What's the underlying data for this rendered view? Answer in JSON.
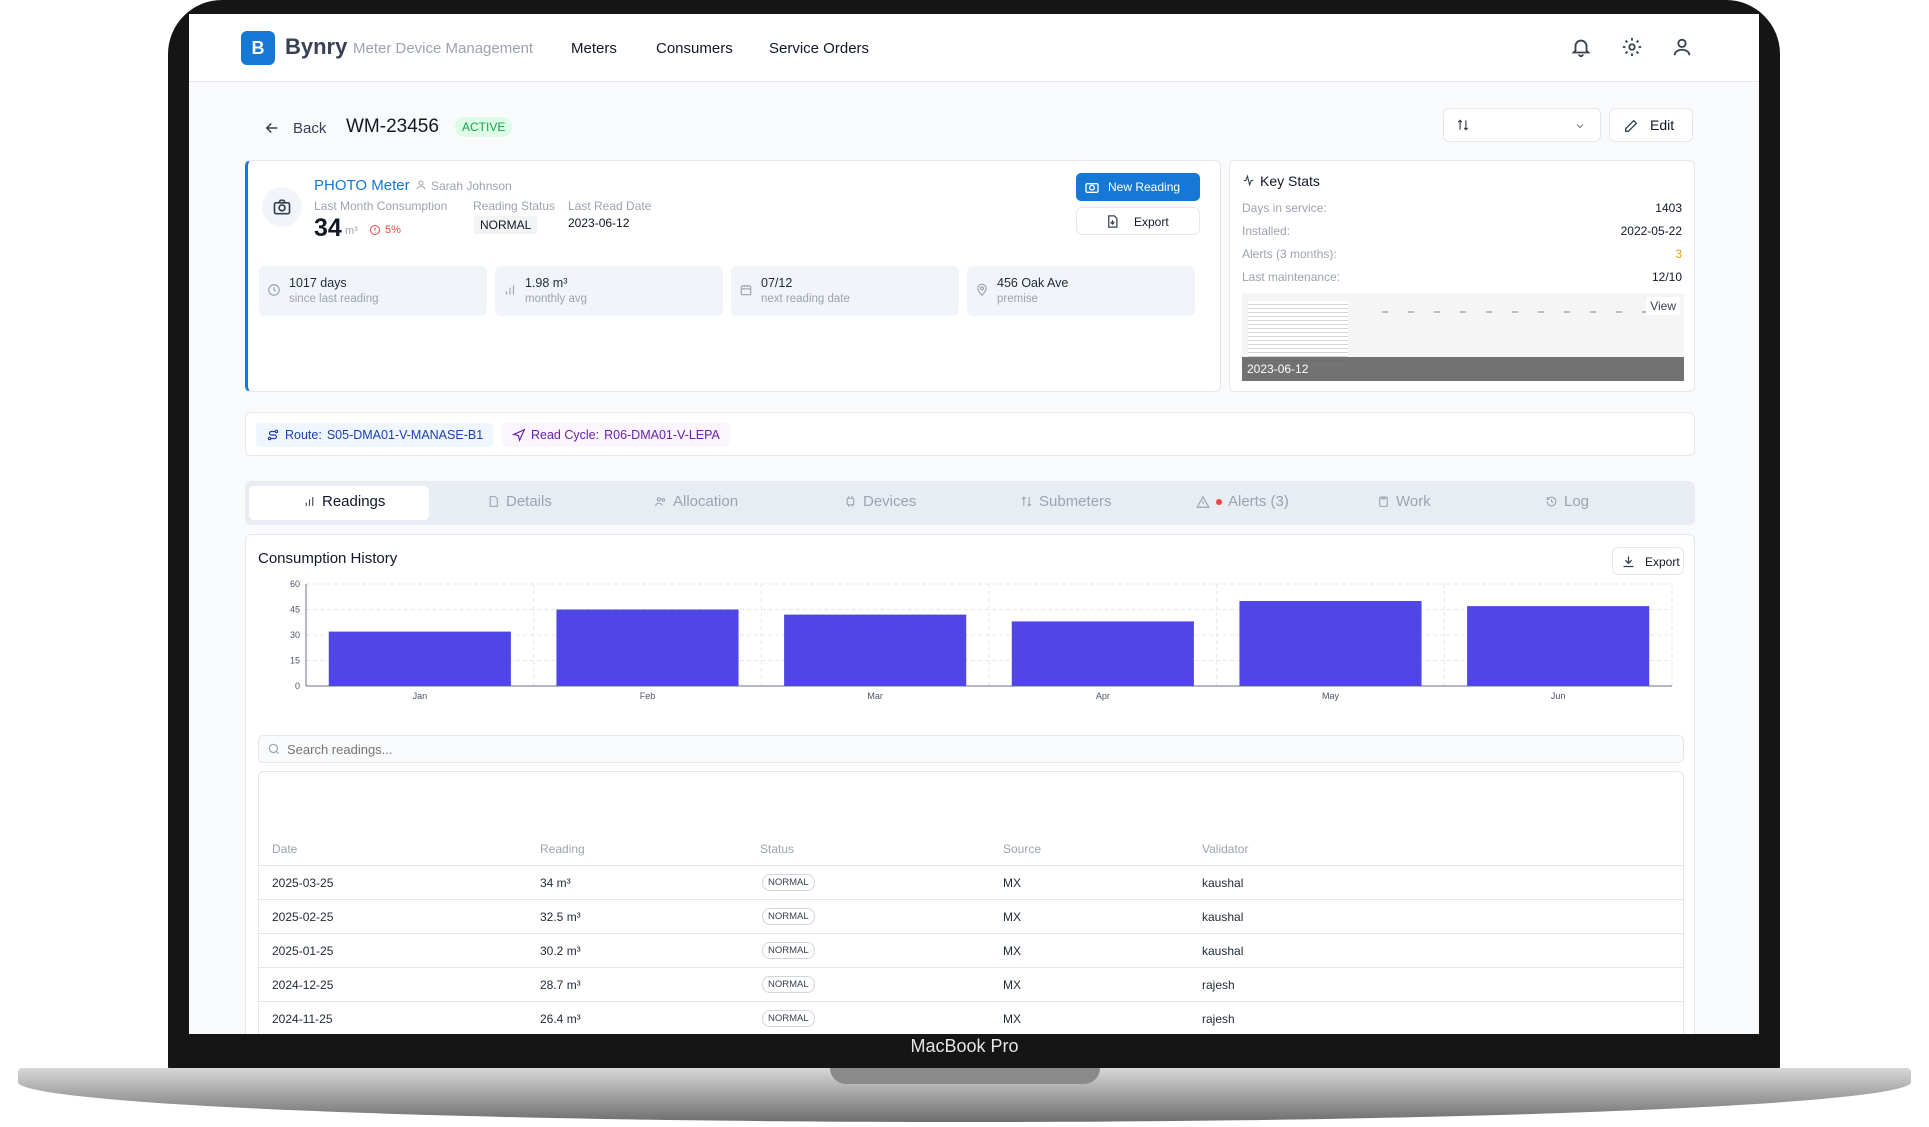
{
  "device_label": "MacBook Pro",
  "header": {
    "logo_letter": "B",
    "brand": "Bynry",
    "subtitle": "Meter Device Management",
    "nav": [
      "Meters",
      "Consumers",
      "Service Orders"
    ]
  },
  "page": {
    "back_label": "Back",
    "meter_id": "WM-23456",
    "status": "ACTIVE",
    "edit_label": "Edit"
  },
  "meter_card": {
    "type": "PHOTO Meter",
    "owner": "Sarah Johnson",
    "consumption_label": "Last Month Consumption",
    "consumption_value": "34",
    "consumption_unit": "m³",
    "change": "5%",
    "reading_status_label": "Reading Status",
    "reading_status": "NORMAL",
    "last_read_label": "Last Read Date",
    "last_read": "2023-06-12",
    "new_reading_label": "New Reading",
    "export_label": "Export",
    "chips": [
      {
        "value": "1017 days",
        "caption": "since last reading"
      },
      {
        "value": "1.98 m³",
        "caption": "monthly avg"
      },
      {
        "value": "07/12",
        "caption": "next reading date"
      },
      {
        "value": "456 Oak Ave",
        "caption": "premise"
      }
    ]
  },
  "key_stats": {
    "title": "Key Stats",
    "rows": [
      {
        "label": "Days in service:",
        "value": "1403"
      },
      {
        "label": "Installed:",
        "value": "2022-05-22"
      },
      {
        "label": "Alerts (3 months):",
        "value": "3"
      },
      {
        "label": "Last maintenance:",
        "value": "12/10"
      }
    ],
    "photo_date": "2023-06-12",
    "view_label": "View",
    "alert_color": "#f59e0b"
  },
  "route_bar": {
    "route_label": "Route:",
    "route_value": "S05-DMA01-V-MANASE-B1",
    "cycle_label": "Read Cycle:",
    "cycle_value": "R06-DMA01-V-LEPA"
  },
  "tabs": [
    "Readings",
    "Details",
    "Allocation",
    "Devices",
    "Submeters",
    "Alerts (3)",
    "Work",
    "Log"
  ],
  "history": {
    "title": "Consumption History",
    "export_label": "Export",
    "search_placeholder": "Search readings..."
  },
  "chart_data": {
    "type": "bar",
    "categories": [
      "Jan",
      "Feb",
      "Mar",
      "Apr",
      "May",
      "Jun"
    ],
    "values": [
      32,
      45,
      42,
      38,
      50,
      47
    ],
    "ylim": [
      0,
      60
    ],
    "yticks": [
      0,
      15,
      30,
      45,
      60
    ],
    "grid": true,
    "color": "#4f46e5"
  },
  "table": {
    "headers": [
      "Date",
      "Reading",
      "Status",
      "Source",
      "Validator"
    ],
    "rows": [
      [
        "2025-03-25",
        "34 m³",
        "NORMAL",
        "MX",
        "kaushal"
      ],
      [
        "2025-02-25",
        "32.5 m³",
        "NORMAL",
        "MX",
        "kaushal"
      ],
      [
        "2025-01-25",
        "30.2 m³",
        "NORMAL",
        "MX",
        "kaushal"
      ],
      [
        "2024-12-25",
        "28.7 m³",
        "NORMAL",
        "MX",
        "rajesh"
      ],
      [
        "2024-11-25",
        "26.4 m³",
        "NORMAL",
        "MX",
        "rajesh"
      ]
    ]
  }
}
